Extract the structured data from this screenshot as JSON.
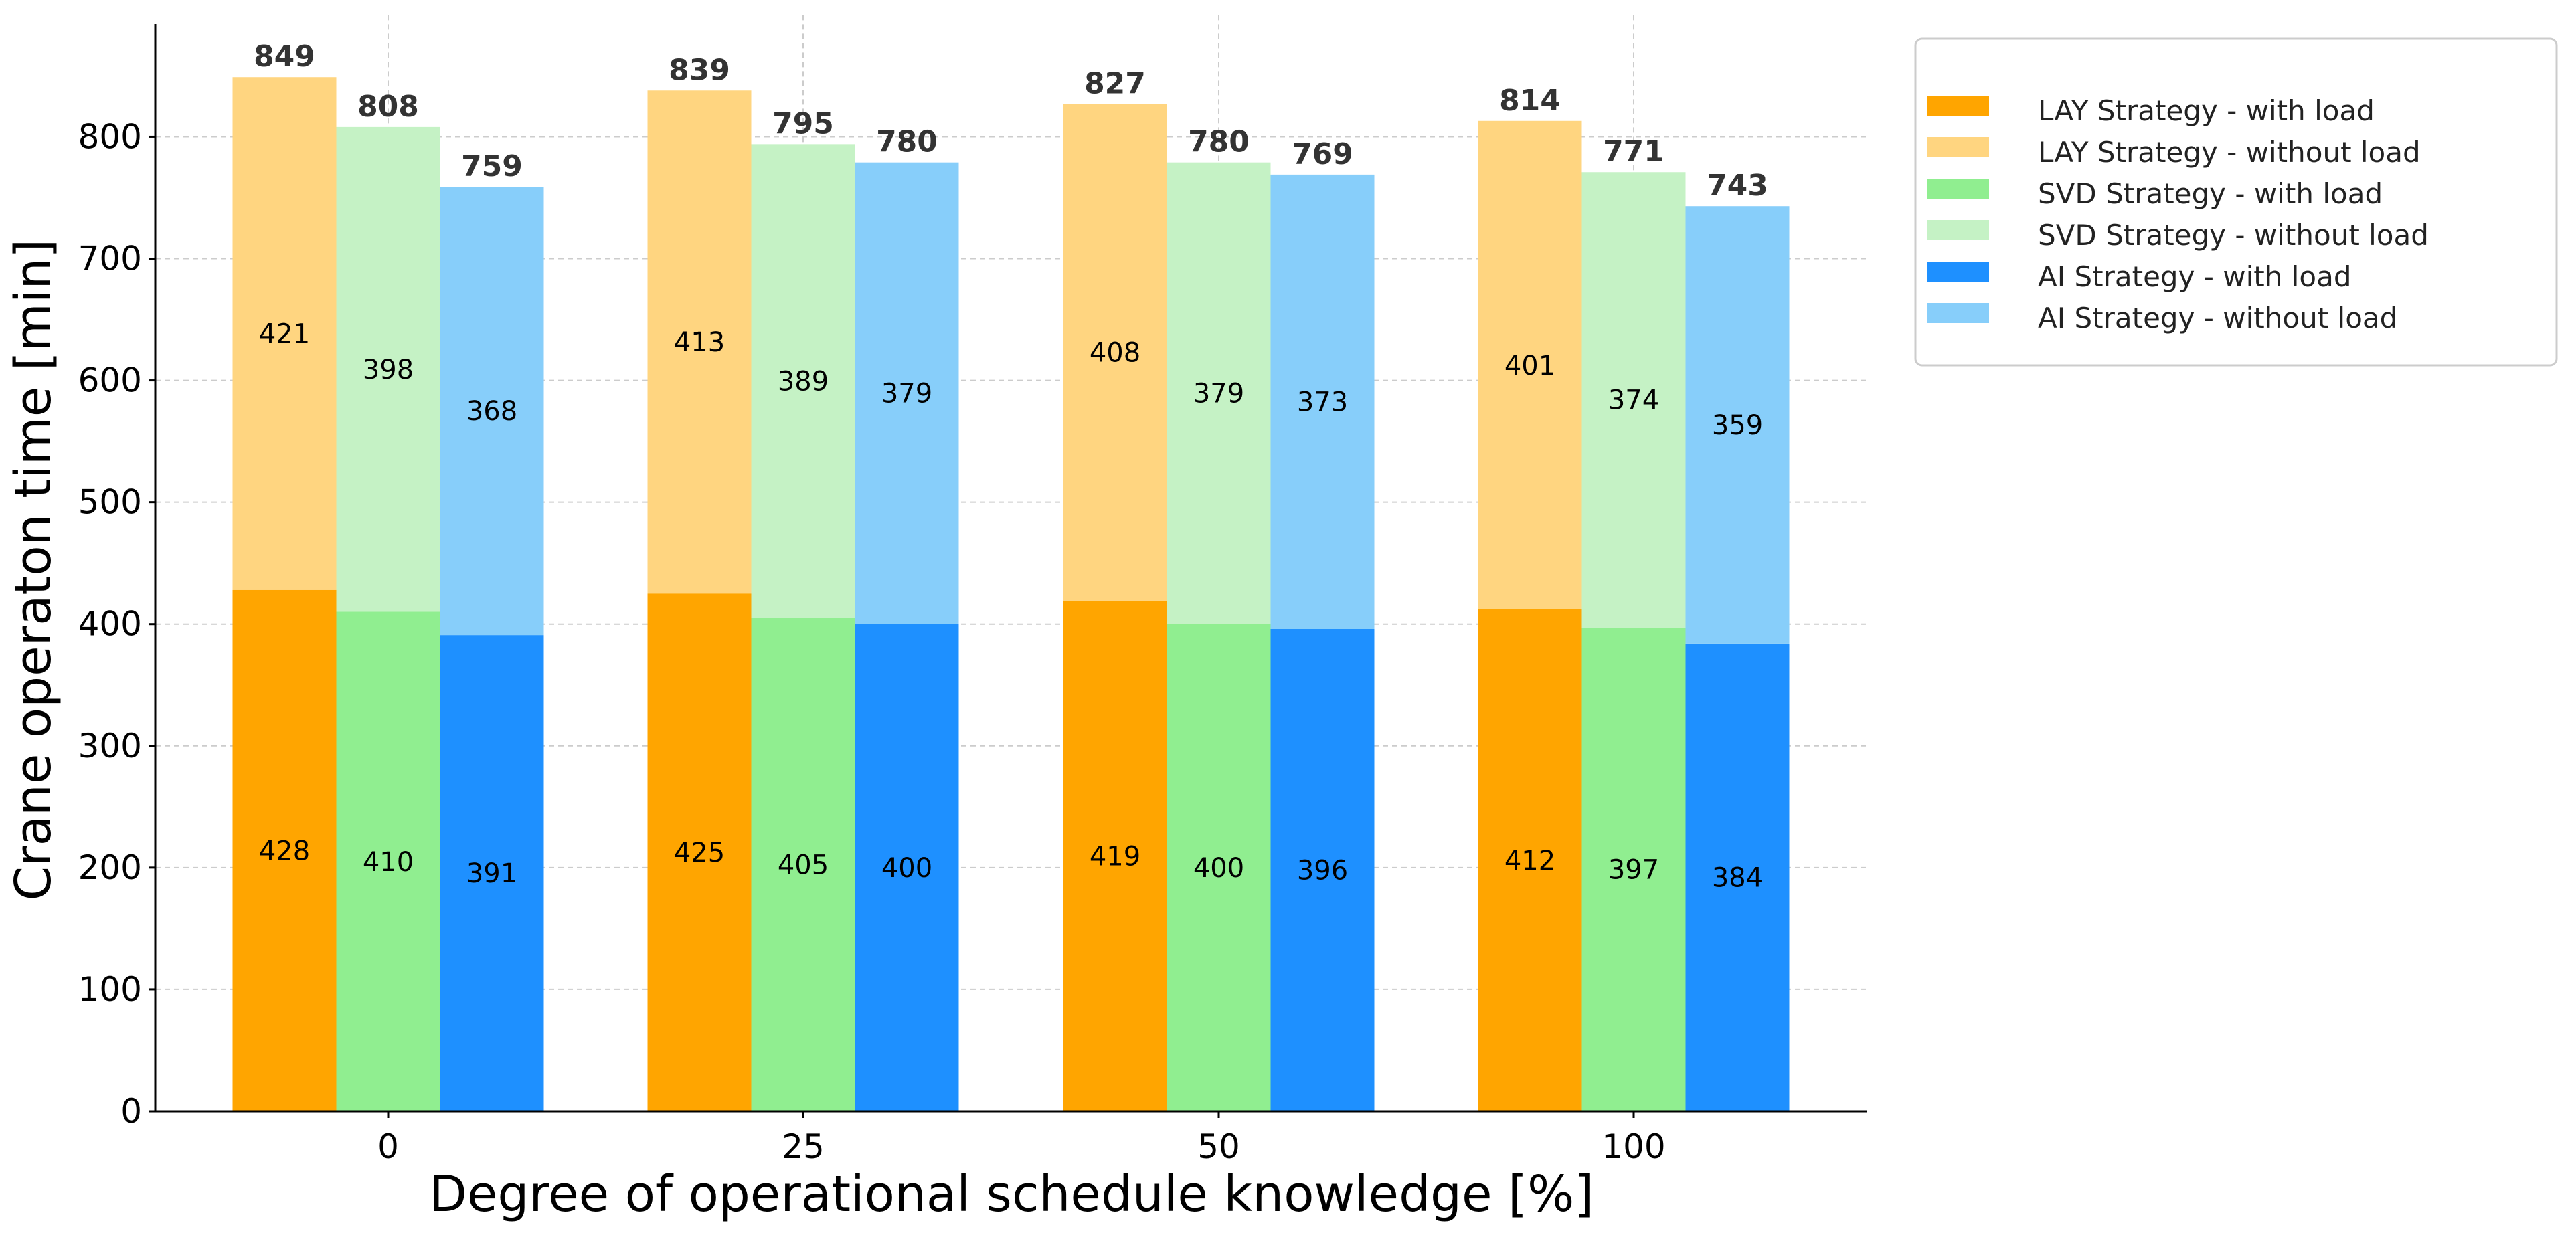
{
  "chart_data": {
    "type": "bar",
    "stacked": true,
    "grouped": true,
    "title": "",
    "xlabel": "Degree of operational schedule knowledge [%]",
    "ylabel": "Crane operaton time [min]",
    "ylim": [
      0,
      900
    ],
    "yticks": [
      "0",
      "100",
      "200",
      "300",
      "400",
      "500",
      "600",
      "700",
      "800"
    ],
    "grid": true,
    "legend_position": "top-right, outside plot",
    "categories": [
      "0",
      "25",
      "50",
      "100"
    ],
    "groups": [
      {
        "strategy": "LAY",
        "segments": [
          {
            "name": "LAY Strategy - with load",
            "color": "#FFA500",
            "values": [
              428,
              425,
              419,
              412
            ]
          },
          {
            "name": "LAY Strategy - without load",
            "color": "#FFD580",
            "values": [
              421,
              413,
              408,
              401
            ]
          }
        ],
        "totals": [
          849,
          839,
          827,
          814
        ]
      },
      {
        "strategy": "SVD",
        "segments": [
          {
            "name": "SVD Strategy - with load",
            "color": "#90EE90",
            "values": [
              410,
              405,
              400,
              397
            ]
          },
          {
            "name": "SVD Strategy - without load",
            "color": "#C5F2C5",
            "values": [
              398,
              389,
              379,
              374
            ]
          }
        ],
        "totals": [
          808,
          795,
          780,
          771
        ]
      },
      {
        "strategy": "AI",
        "segments": [
          {
            "name": "AI Strategy - with load",
            "color": "#1E90FF",
            "values": [
              391,
              400,
              396,
              384
            ]
          },
          {
            "name": "AI Strategy - without load",
            "color": "#87CEFA",
            "values": [
              368,
              379,
              373,
              359
            ]
          }
        ],
        "totals": [
          759,
          780,
          769,
          743
        ]
      }
    ],
    "legend": [
      {
        "label": "LAY Strategy - with load",
        "color": "#FFA500"
      },
      {
        "label": "LAY Strategy - without load",
        "color": "#FFD580"
      },
      {
        "label": "SVD Strategy - with load",
        "color": "#90EE90"
      },
      {
        "label": "SVD Strategy - without load",
        "color": "#C5F2C5"
      },
      {
        "label": "AI Strategy - with load",
        "color": "#1E90FF"
      },
      {
        "label": "AI Strategy - without load",
        "color": "#87CEFA"
      }
    ]
  }
}
